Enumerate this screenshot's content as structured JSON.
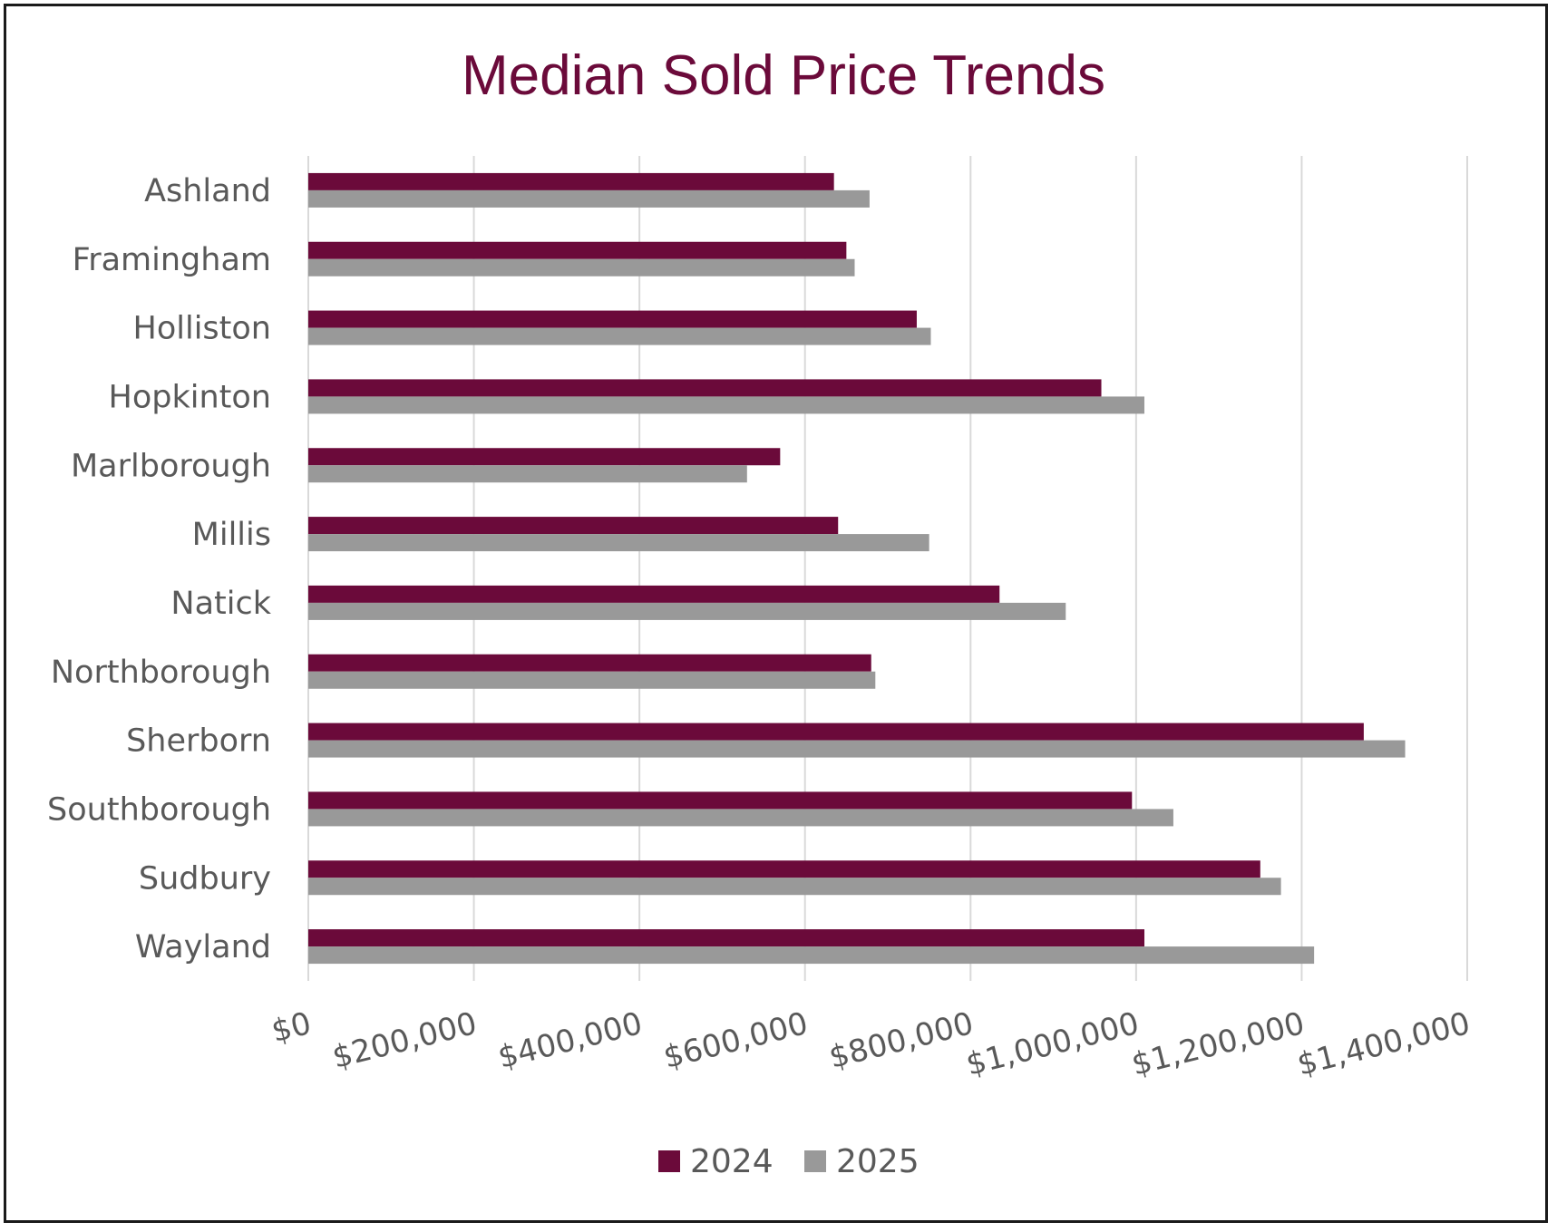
{
  "chart_data": {
    "type": "bar",
    "orientation": "horizontal",
    "title": "Median Sold Price Trends",
    "categories": [
      "Ashland",
      "Framingham",
      "Holliston",
      "Hopkinton",
      "Marlborough",
      "Millis",
      "Natick",
      "Northborough",
      "Sherborn",
      "Southborough",
      "Sudbury",
      "Wayland"
    ],
    "series": [
      {
        "name": "2024",
        "color": "#6b0a3a",
        "values": [
          635000,
          650000,
          735000,
          958000,
          570000,
          640000,
          835000,
          680000,
          1275000,
          995000,
          1150000,
          1010000
        ]
      },
      {
        "name": "2025",
        "color": "#999999",
        "values": [
          678000,
          660000,
          752000,
          1010000,
          530000,
          750000,
          915000,
          685000,
          1325000,
          1045000,
          1175000,
          1215000
        ]
      }
    ],
    "xlim": [
      0,
      1400000
    ],
    "xticks": [
      0,
      200000,
      400000,
      600000,
      800000,
      1000000,
      1200000,
      1400000
    ],
    "xtick_labels": [
      "$0",
      "$200,000",
      "$400,000",
      "$600,000",
      "$800,000",
      "$1,000,000",
      "$1,200,000",
      "$1,400,000"
    ],
    "xlabel": "",
    "ylabel": "",
    "grid": true,
    "legend_position": "bottom-center"
  }
}
